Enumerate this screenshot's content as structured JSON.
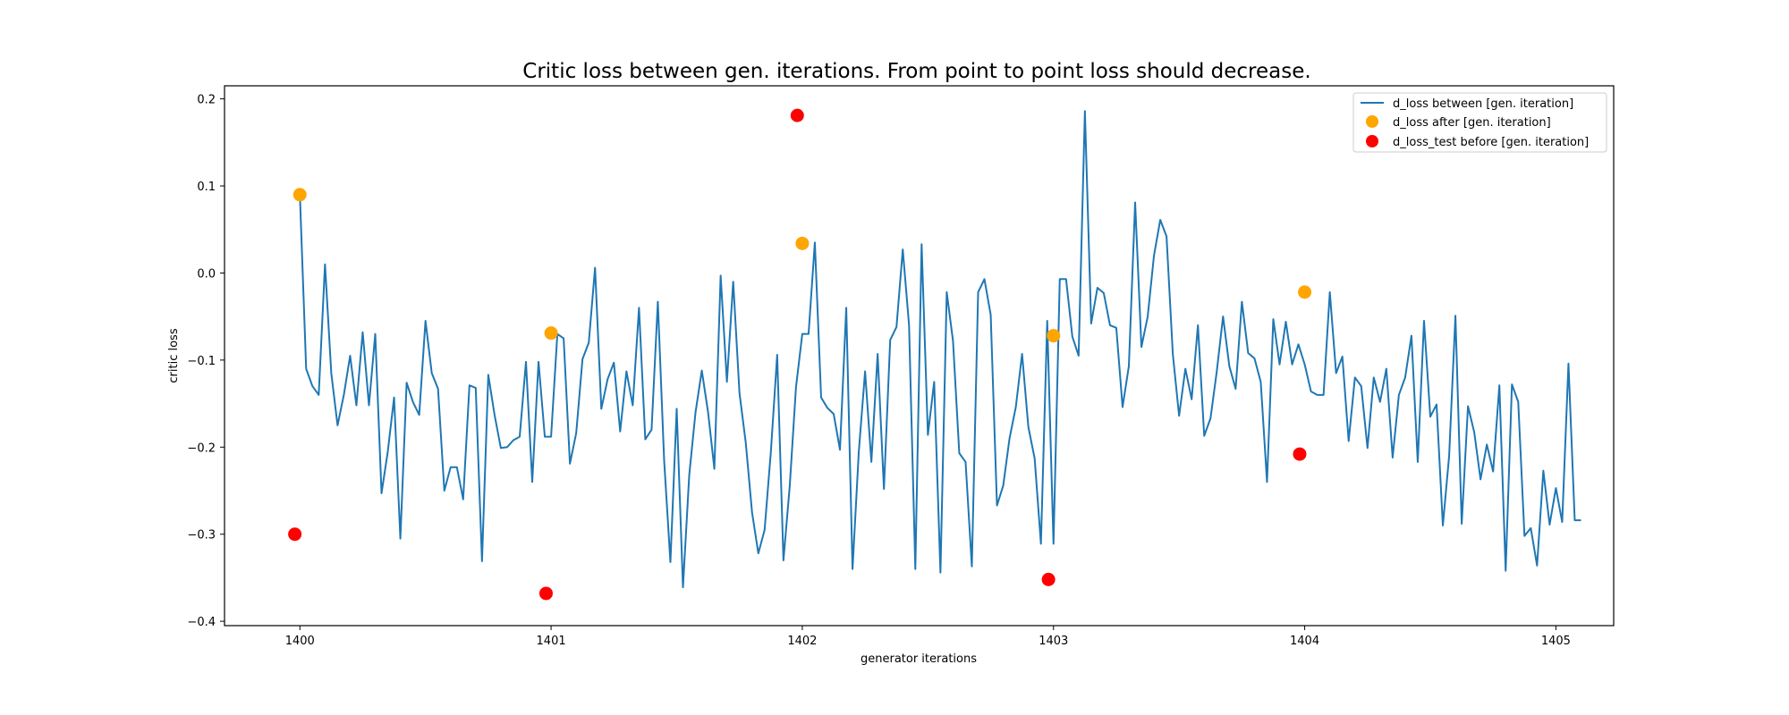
{
  "chart_data": {
    "type": "line",
    "title": "Critic loss between gen. iterations. From point to point loss should decrease.",
    "xlabel": "generator iterations",
    "ylabel": "critic loss",
    "xlim": [
      1399.7,
      1405.23
    ],
    "ylim": [
      -0.405,
      0.215
    ],
    "xticks": [
      1400,
      1401,
      1402,
      1403,
      1404,
      1405
    ],
    "yticks": [
      0.2,
      0.1,
      0.0,
      -0.1,
      -0.2,
      -0.3,
      -0.4
    ],
    "ytick_labels": [
      "0.2",
      "0.1",
      "0.0",
      "−0.1",
      "−0.2",
      "−0.3",
      "−0.4"
    ],
    "grid": false,
    "legend_position": "top-right",
    "series": [
      {
        "name": "d_loss between [gen. iteration]",
        "kind": "line",
        "color": "#1f77b4",
        "x_start": 1400.0,
        "x_step": 0.025,
        "values": [
          0.09,
          -0.11,
          -0.13,
          -0.14,
          0.01,
          -0.115,
          -0.175,
          -0.14,
          -0.095,
          -0.152,
          -0.068,
          -0.152,
          -0.07,
          -0.253,
          -0.205,
          -0.143,
          -0.305,
          -0.126,
          -0.148,
          -0.163,
          -0.055,
          -0.115,
          -0.133,
          -0.25,
          -0.223,
          -0.223,
          -0.26,
          -0.129,
          -0.132,
          -0.331,
          -0.117,
          -0.163,
          -0.201,
          -0.2,
          -0.192,
          -0.188,
          -0.102,
          -0.24,
          -0.102,
          -0.188,
          -0.188,
          -0.07,
          -0.075,
          -0.219,
          -0.184,
          -0.099,
          -0.08,
          0.006,
          -0.156,
          -0.122,
          -0.103,
          -0.182,
          -0.113,
          -0.152,
          -0.04,
          -0.191,
          -0.18,
          -0.033,
          -0.215,
          -0.332,
          -0.156,
          -0.361,
          -0.232,
          -0.16,
          -0.112,
          -0.16,
          -0.225,
          -0.003,
          -0.125,
          -0.01,
          -0.138,
          -0.195,
          -0.275,
          -0.322,
          -0.295,
          -0.205,
          -0.094,
          -0.33,
          -0.245,
          -0.131,
          -0.07,
          -0.07,
          0.035,
          -0.143,
          -0.155,
          -0.162,
          -0.203,
          -0.04,
          -0.34,
          -0.205,
          -0.113,
          -0.217,
          -0.093,
          -0.248,
          -0.077,
          -0.062,
          0.027,
          -0.06,
          -0.34,
          0.033,
          -0.186,
          -0.125,
          -0.344,
          -0.022,
          -0.078,
          -0.207,
          -0.217,
          -0.337,
          -0.022,
          -0.007,
          -0.048,
          -0.267,
          -0.244,
          -0.19,
          -0.154,
          -0.093,
          -0.177,
          -0.213,
          -0.311,
          -0.055,
          -0.311,
          -0.007,
          -0.007,
          -0.073,
          -0.095,
          0.186,
          -0.058,
          -0.017,
          -0.023,
          -0.06,
          -0.063,
          -0.154,
          -0.107,
          0.081,
          -0.085,
          -0.05,
          0.02,
          0.061,
          0.042,
          -0.093,
          -0.164,
          -0.11,
          -0.145,
          -0.06,
          -0.187,
          -0.167,
          -0.113,
          -0.05,
          -0.107,
          -0.133,
          -0.033,
          -0.092,
          -0.098,
          -0.125,
          -0.24,
          -0.053,
          -0.105,
          -0.056,
          -0.105,
          -0.082,
          -0.105,
          -0.136,
          -0.14,
          -0.14,
          -0.022,
          -0.115,
          -0.096,
          -0.193,
          -0.12,
          -0.13,
          -0.201,
          -0.12,
          -0.148,
          -0.11,
          -0.212,
          -0.14,
          -0.12,
          -0.072,
          -0.217,
          -0.055,
          -0.165,
          -0.151,
          -0.29,
          -0.21,
          -0.049,
          -0.288,
          -0.153,
          -0.183,
          -0.237,
          -0.197,
          -0.228,
          -0.129,
          -0.342,
          -0.128,
          -0.148,
          -0.302,
          -0.293,
          -0.336,
          -0.227,
          -0.289,
          -0.247,
          -0.286,
          -0.104,
          -0.284,
          -0.284
        ]
      },
      {
        "name": "d_loss after [gen. iteration]",
        "kind": "scatter",
        "color": "#ffa500",
        "points": [
          [
            1400.0,
            0.09
          ],
          [
            1401.0,
            -0.069
          ],
          [
            1402.0,
            0.034
          ],
          [
            1403.0,
            -0.072
          ],
          [
            1404.0,
            -0.022
          ]
        ]
      },
      {
        "name": "d_loss_test before [gen. iteration]",
        "kind": "scatter",
        "color": "#ff0000",
        "points": [
          [
            1399.98,
            -0.3
          ],
          [
            1400.98,
            -0.368
          ],
          [
            1401.98,
            0.181
          ],
          [
            1402.98,
            -0.352
          ],
          [
            1403.98,
            -0.208
          ]
        ]
      }
    ]
  }
}
